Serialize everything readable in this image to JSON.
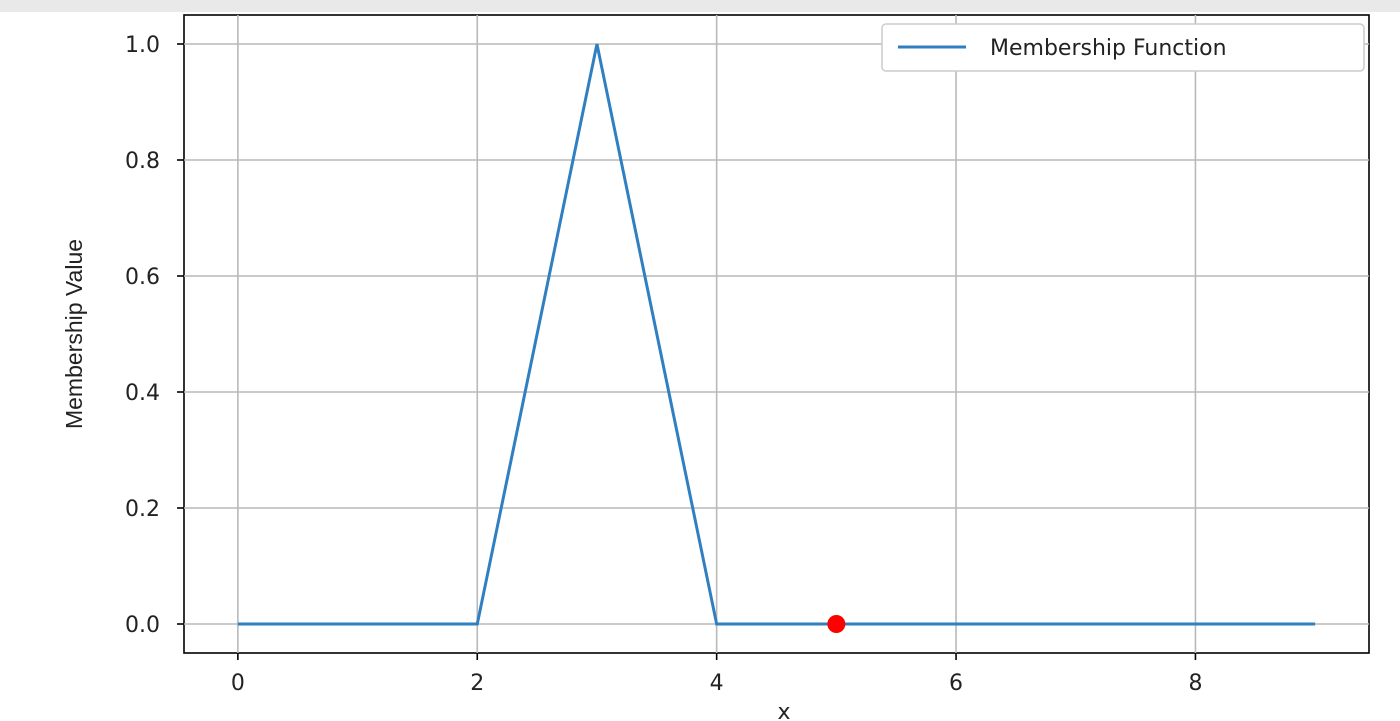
{
  "chart_data": {
    "type": "line",
    "title": "",
    "xlabel": "x",
    "ylabel": "Membership Value",
    "xlim": [
      -0.45,
      9.45
    ],
    "ylim": [
      -0.05,
      1.05
    ],
    "x_ticks": [
      0,
      2,
      4,
      6,
      8
    ],
    "y_ticks": [
      0.0,
      0.2,
      0.4,
      0.6,
      0.8,
      1.0
    ],
    "x_tick_labels": [
      "0",
      "2",
      "4",
      "6",
      "8"
    ],
    "y_tick_labels": [
      "0.0",
      "0.2",
      "0.4",
      "0.6",
      "0.8",
      "1.0"
    ],
    "grid": true,
    "legend_position": "top-right",
    "series": [
      {
        "name": "Membership Function",
        "color": "#2f7fc1",
        "x": [
          0,
          1,
          2,
          3,
          4,
          5,
          6,
          7,
          8,
          9
        ],
        "y": [
          0,
          0,
          0,
          1,
          0,
          0,
          0,
          0,
          0,
          0
        ]
      }
    ],
    "points": [
      {
        "x": 5,
        "y": 0,
        "color": "#ff0000"
      }
    ]
  }
}
